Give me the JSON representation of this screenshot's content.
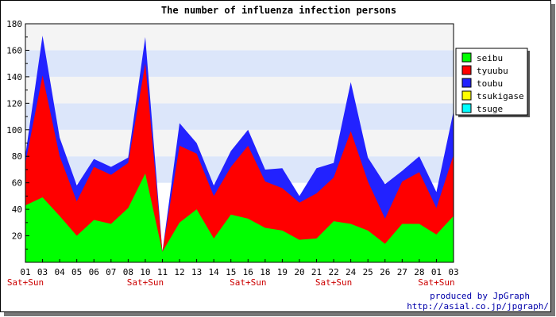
{
  "chart_data": {
    "type": "area",
    "stacked": true,
    "title": "The number of influenza infection persons",
    "xlabel": "",
    "ylabel": "",
    "ylim": [
      0,
      180
    ],
    "yticks": [
      20,
      40,
      60,
      80,
      100,
      120,
      140,
      160,
      180
    ],
    "grid": "alternating bands",
    "legend_position": "right",
    "categories": [
      "01",
      "03",
      "04",
      "05",
      "06",
      "07",
      "08",
      "10",
      "11",
      "12",
      "13",
      "14",
      "15",
      "16",
      "18",
      "19",
      "20",
      "21",
      "22",
      "24",
      "25",
      "26",
      "27",
      "28",
      "01",
      "03"
    ],
    "weekend_label": "Sat+Sun",
    "weekend_after_indices": [
      0,
      7,
      13,
      18,
      24
    ],
    "series": [
      {
        "name": "seibu",
        "color": "#00ff00",
        "values": [
          43,
          49,
          35,
          20,
          32,
          29,
          41,
          67,
          8,
          30,
          40,
          18,
          36,
          33,
          26,
          24,
          17,
          18,
          31,
          29,
          24,
          14,
          29,
          29,
          21,
          35
        ]
      },
      {
        "name": "tyuubu",
        "color": "#ff0000",
        "values": [
          32,
          92,
          45,
          26,
          40,
          37,
          34,
          83,
          0,
          58,
          42,
          32,
          36,
          55,
          35,
          32,
          28,
          34,
          33,
          70,
          37,
          19,
          32,
          39,
          20,
          46
        ]
      },
      {
        "name": "toubu",
        "color": "#2222ff",
        "values": [
          6,
          30,
          14,
          12,
          6,
          6,
          4,
          20,
          0,
          17,
          8,
          8,
          12,
          12,
          9,
          15,
          5,
          19,
          11,
          37,
          18,
          26,
          8,
          12,
          12,
          33
        ]
      },
      {
        "name": "tsukigase",
        "color": "#ffff00",
        "values": [
          0,
          0,
          0,
          0,
          0,
          0,
          0,
          0,
          0,
          0,
          0,
          0,
          0,
          0,
          0,
          0,
          0,
          0,
          0,
          0,
          0,
          0,
          0,
          0,
          0,
          0
        ]
      },
      {
        "name": "tsuge",
        "color": "#00ffff",
        "values": [
          0,
          0,
          0,
          0,
          0,
          0,
          0,
          0,
          0,
          0,
          0,
          0,
          0,
          0,
          0,
          0,
          0,
          0,
          0,
          0,
          0,
          0,
          0,
          0,
          0,
          0
        ]
      }
    ],
    "draw_order": [
      2,
      1,
      0
    ]
  },
  "colors": {
    "band_light": "#f4f4f4",
    "band_blue": "#dce6fa"
  },
  "credit": {
    "line1": "produced by JpGraph",
    "line2": "http://asial.co.jp/jpgraph/"
  }
}
